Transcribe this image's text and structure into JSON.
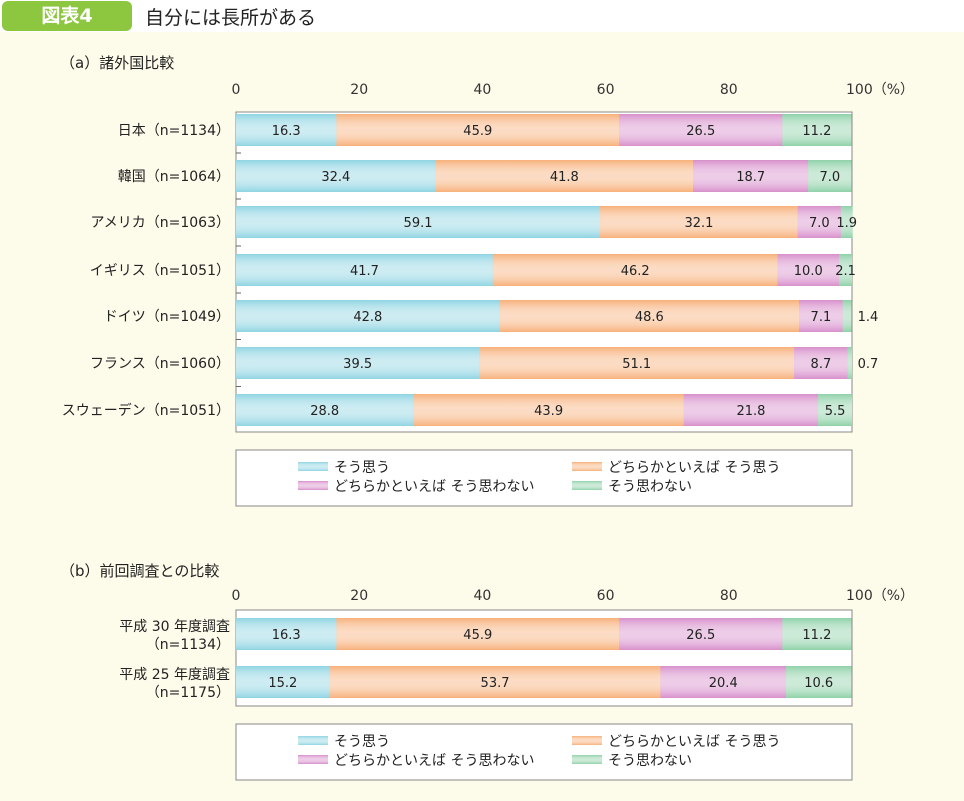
{
  "header": {
    "badge": "図表4",
    "title": "自分には長所がある"
  },
  "colors": {
    "header_green": "#8dc63f",
    "series": [
      "#8fd4e2",
      "#f7b07a",
      "#d78fcb",
      "#8fd1a8"
    ],
    "background": "#fdfbea"
  },
  "legend": [
    "そう思う",
    "どちらかといえば そう思う",
    "どちらかといえば そう思わない",
    "そう思わない"
  ],
  "chart_data": [
    {
      "type": "bar",
      "orientation": "horizontal",
      "stacked": true,
      "title": "（a）諸外国比較",
      "xlim": [
        0,
        100
      ],
      "xticks": [
        "0",
        "20",
        "40",
        "60",
        "80",
        "100（%）"
      ],
      "legend_placement": "bottom",
      "categories": [
        "日本（n=1134）",
        "韓国（n=1064）",
        "アメリカ（n=1063）",
        "イギリス（n=1051）",
        "ドイツ（n=1049）",
        "フランス（n=1060）",
        "スウェーデン（n=1051）"
      ],
      "series": [
        {
          "name": "そう思う",
          "values": [
            16.3,
            32.4,
            59.1,
            41.7,
            42.8,
            39.5,
            28.8
          ]
        },
        {
          "name": "どちらかといえば そう思う",
          "values": [
            45.9,
            41.8,
            32.1,
            46.2,
            48.6,
            51.1,
            43.9
          ]
        },
        {
          "name": "どちらかといえば そう思わない",
          "values": [
            26.5,
            18.7,
            7.0,
            10.0,
            7.1,
            8.7,
            21.8
          ]
        },
        {
          "name": "そう思わない",
          "values": [
            11.2,
            7.0,
            1.9,
            2.1,
            1.4,
            0.7,
            5.5
          ]
        }
      ]
    },
    {
      "type": "bar",
      "orientation": "horizontal",
      "stacked": true,
      "title": "（b）前回調査との比較",
      "xlim": [
        0,
        100
      ],
      "xticks": [
        "0",
        "20",
        "40",
        "60",
        "80",
        "100（%）"
      ],
      "legend_placement": "bottom",
      "categories": [
        [
          "平成 30 年度調査",
          "（n=1134）"
        ],
        [
          "平成 25 年度調査",
          "（n=1175）"
        ]
      ],
      "series": [
        {
          "name": "そう思う",
          "values": [
            16.3,
            15.2
          ]
        },
        {
          "name": "どちらかといえば そう思う",
          "values": [
            45.9,
            53.7
          ]
        },
        {
          "name": "どちらかといえば そう思わない",
          "values": [
            26.5,
            20.4
          ]
        },
        {
          "name": "そう思わない",
          "values": [
            11.2,
            10.6
          ]
        }
      ]
    }
  ]
}
